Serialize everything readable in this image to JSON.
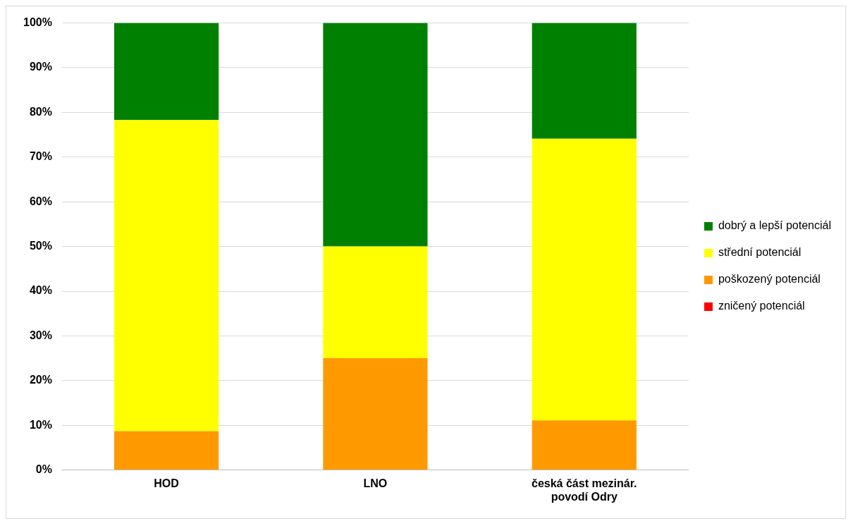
{
  "chart_data": {
    "type": "bar",
    "stacked": true,
    "categories": [
      "HOD",
      "LNO",
      "česká část mezinár. povodí Odry"
    ],
    "series": [
      {
        "name": "zničený potenciál",
        "color": "#ff0000",
        "values": [
          0,
          0,
          0
        ]
      },
      {
        "name": "poškozený potenciál",
        "color": "#ff9900",
        "values": [
          8.7,
          25,
          11.1
        ]
      },
      {
        "name": "střední potenciál",
        "color": "#ffff00",
        "values": [
          69.6,
          25,
          63.0
        ]
      },
      {
        "name": "dobrý a lepší potenciál",
        "color": "#008000",
        "values": [
          21.7,
          50,
          25.9
        ]
      }
    ],
    "ylim": [
      0,
      100
    ],
    "yticks": [
      {
        "value": 0,
        "label": "0%"
      },
      {
        "value": 10,
        "label": "10%"
      },
      {
        "value": 20,
        "label": "20%"
      },
      {
        "value": 30,
        "label": "30%"
      },
      {
        "value": 40,
        "label": "40%"
      },
      {
        "value": 50,
        "label": "50%"
      },
      {
        "value": 60,
        "label": "60%"
      },
      {
        "value": 70,
        "label": "70%"
      },
      {
        "value": 80,
        "label": "80%"
      },
      {
        "value": 90,
        "label": "90%"
      },
      {
        "value": 100,
        "label": "100%"
      }
    ],
    "grid": "y",
    "legend": "right"
  }
}
